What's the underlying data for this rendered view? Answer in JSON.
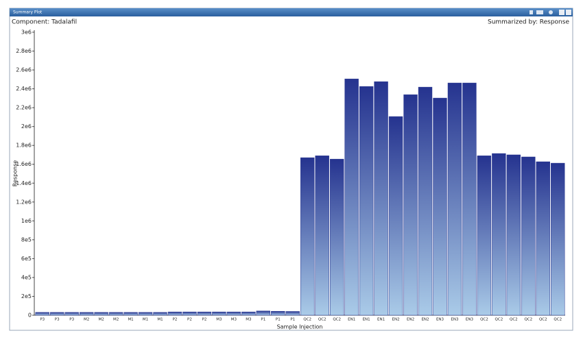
{
  "ui": {
    "tab": "Summary Plot"
  },
  "chart_data": {
    "type": "bar",
    "title": "Component: Tadalafil",
    "subtitle": "Summarized by: Response",
    "x_label": "Sample Injection",
    "y_label": "Response",
    "color": "#25338f",
    "color_bottom": "#aacbe8",
    "categories": [
      "P3",
      "P3",
      "P3",
      "M2",
      "M2",
      "M2",
      "M1",
      "M1",
      "M1",
      "P2",
      "P2",
      "P2",
      "M3",
      "M3",
      "M3",
      "P1",
      "P1",
      "P1",
      "QC2",
      "QC2",
      "QC2",
      "EN1",
      "EN1",
      "EN1",
      "EN2",
      "EN2",
      "EN2",
      "EN3",
      "EN3",
      "EN3",
      "QC2",
      "QC2",
      "QC2",
      "QC2",
      "QC2",
      "QC2"
    ],
    "values": [
      30000,
      30000,
      30000,
      30000,
      30000,
      30000,
      30000,
      30000,
      30000,
      35000,
      35000,
      35000,
      35000,
      35000,
      35000,
      45000,
      42000,
      40000,
      1670000,
      1690000,
      1655000,
      2505000,
      2425000,
      2476000,
      2106000,
      2338000,
      2418000,
      2302000,
      2462000,
      2462000,
      1690000,
      1714000,
      1700000,
      1678000,
      1627000,
      1612000
    ],
    "ylim": [
      0,
      3000000
    ],
    "yticks": [
      0,
      {
        "value": 200000,
        "label": "2e5"
      },
      {
        "value": 400000,
        "label": "4e5"
      },
      {
        "value": 600000,
        "label": "6e5"
      },
      {
        "value": 800000,
        "label": "8e5"
      },
      {
        "value": 1000000,
        "label": "1e6"
      },
      {
        "value": 1200000,
        "label": "1.2e6"
      },
      {
        "value": 1400000,
        "label": "1.4e6"
      },
      {
        "value": 1600000,
        "label": "1.6e6"
      },
      {
        "value": 1800000,
        "label": "1.8e6"
      },
      {
        "value": 2000000,
        "label": "2e6"
      },
      {
        "value": 2200000,
        "label": "2.2e6"
      },
      {
        "value": 2400000,
        "label": "2.4e6"
      },
      {
        "value": 2600000,
        "label": "2.6e6"
      },
      {
        "value": 2800000,
        "label": "2.8e6"
      },
      {
        "value": 3000000,
        "label": "3e6"
      }
    ],
    "grid": false
  }
}
